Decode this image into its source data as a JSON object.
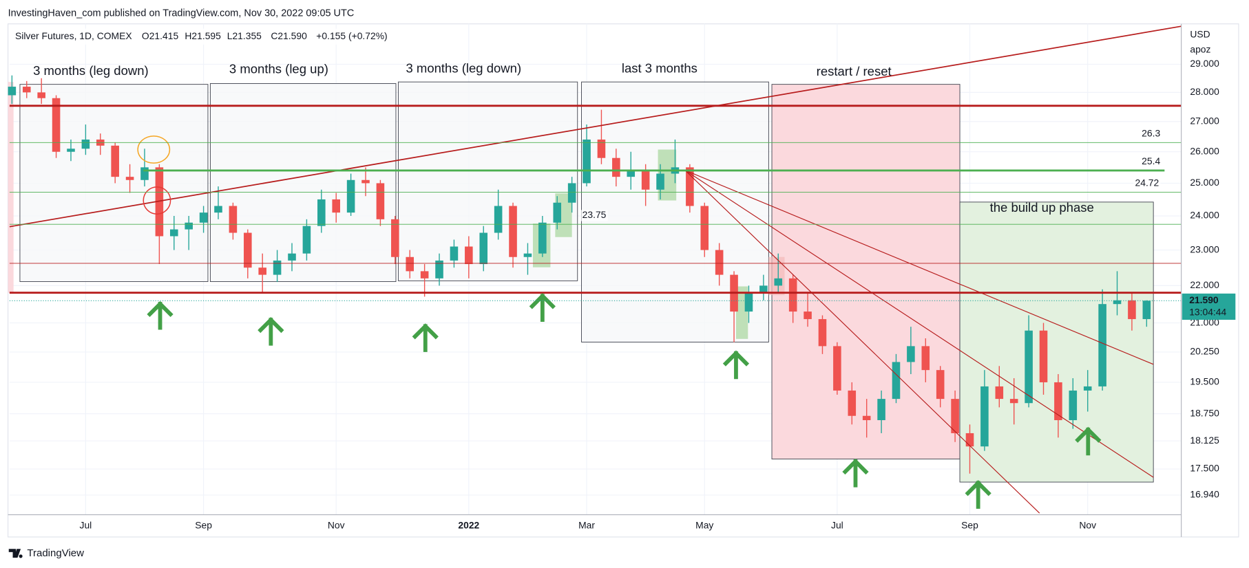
{
  "header": {
    "publisher": "InvestingHaven_com published on TradingView.com, Nov 30, 2022 09:05 UTC"
  },
  "footer": {
    "brand": "TradingView"
  },
  "chart_data": {
    "type": "candlestick",
    "title": "Silver Futures, 1D, COMEX",
    "legend_values": [
      "O21.415",
      "H21.595",
      "L21.355",
      "C21.590",
      "+0.155 (+0.72%)"
    ],
    "axis_unit": "USD",
    "axis_subunit": "apoz",
    "log_scale": true,
    "grid": true,
    "up_color": "#26a69a",
    "down_color": "#ef5350",
    "categories": [
      null,
      null,
      null,
      null,
      null,
      "Jul",
      null,
      null,
      null,
      null,
      null,
      null,
      null,
      "Sep",
      null,
      null,
      null,
      null,
      null,
      null,
      null,
      null,
      "Nov",
      null,
      null,
      null,
      null,
      null,
      null,
      null,
      null,
      "2022",
      null,
      null,
      null,
      null,
      null,
      null,
      null,
      "Mar",
      null,
      null,
      null,
      null,
      null,
      null,
      null,
      "May",
      null,
      null,
      null,
      null,
      null,
      null,
      null,
      null,
      "Jul",
      null,
      null,
      null,
      null,
      null,
      null,
      null,
      null,
      "Sep",
      null,
      null,
      null,
      null,
      null,
      null,
      null,
      "Nov",
      null,
      null,
      null,
      null
    ],
    "open": [
      27.9,
      28.2,
      28.0,
      27.8,
      26.0,
      26.1,
      26.4,
      26.2,
      25.2,
      25.1,
      25.5,
      23.4,
      23.6,
      23.8,
      24.1,
      24.3,
      23.5,
      22.5,
      22.3,
      22.7,
      22.9,
      23.7,
      24.5,
      24.1,
      25.1,
      25.0,
      23.9,
      22.8,
      22.4,
      22.2,
      22.7,
      23.1,
      22.6,
      23.5,
      24.3,
      22.8,
      22.9,
      23.8,
      24.4,
      25.0,
      26.4,
      25.8,
      25.2,
      25.4,
      24.8,
      25.3,
      25.5,
      24.3,
      23.0,
      22.3,
      21.3,
      21.8,
      22.0,
      22.2,
      21.3,
      21.1,
      20.4,
      19.3,
      18.7,
      18.6,
      19.1,
      20.0,
      20.4,
      19.8,
      19.1,
      18.3,
      18.0,
      19.4,
      19.1,
      19.0,
      20.8,
      19.5,
      18.6,
      19.3,
      19.4,
      21.5,
      21.6,
      21.1
    ],
    "high": [
      28.6,
      28.4,
      28.5,
      27.9,
      26.4,
      26.9,
      26.6,
      26.3,
      25.6,
      26.1,
      25.6,
      24.0,
      24.0,
      24.3,
      24.9,
      24.4,
      23.6,
      22.9,
      23.0,
      23.2,
      23.9,
      24.8,
      24.7,
      25.3,
      25.5,
      25.1,
      24.0,
      23.0,
      22.6,
      22.9,
      23.3,
      23.4,
      23.7,
      24.8,
      24.4,
      23.2,
      24.0,
      24.6,
      25.2,
      26.9,
      27.4,
      26.1,
      26.0,
      25.6,
      25.6,
      26.4,
      25.6,
      24.4,
      23.2,
      22.4,
      22.0,
      22.3,
      22.9,
      22.3,
      21.8,
      21.2,
      20.5,
      19.5,
      19.1,
      19.3,
      20.2,
      20.9,
      20.6,
      19.9,
      19.3,
      18.5,
      19.8,
      19.9,
      19.6,
      21.2,
      21.0,
      19.7,
      19.6,
      19.8,
      21.9,
      22.4,
      21.8,
      21.6
    ],
    "low": [
      27.6,
      27.8,
      27.6,
      25.8,
      25.7,
      25.9,
      25.9,
      25.0,
      24.7,
      24.9,
      22.6,
      23.0,
      23.0,
      23.5,
      23.9,
      23.3,
      22.2,
      21.8,
      22.1,
      22.4,
      22.7,
      23.5,
      23.8,
      24.0,
      24.6,
      23.7,
      22.6,
      22.2,
      21.7,
      22.0,
      22.5,
      22.2,
      22.4,
      23.3,
      22.5,
      22.3,
      22.8,
      23.6,
      24.1,
      24.9,
      25.6,
      24.9,
      24.8,
      24.3,
      24.5,
      25.0,
      24.1,
      22.8,
      22.0,
      20.5,
      21.0,
      21.6,
      21.8,
      21.0,
      20.9,
      20.2,
      19.2,
      18.5,
      18.2,
      18.3,
      19.0,
      19.7,
      19.5,
      18.9,
      18.1,
      17.4,
      17.9,
      18.9,
      18.5,
      18.9,
      19.2,
      18.2,
      18.4,
      18.8,
      19.3,
      21.2,
      20.8,
      20.9
    ],
    "close": [
      28.2,
      28.0,
      27.8,
      26.0,
      26.1,
      26.4,
      26.2,
      25.2,
      25.1,
      25.5,
      23.4,
      23.6,
      23.8,
      24.1,
      24.3,
      23.5,
      22.5,
      22.3,
      22.7,
      22.9,
      23.7,
      24.5,
      24.1,
      25.1,
      25.0,
      23.9,
      22.8,
      22.4,
      22.2,
      22.7,
      23.1,
      22.6,
      23.5,
      24.3,
      22.8,
      22.9,
      23.8,
      24.4,
      25.0,
      26.4,
      25.8,
      25.2,
      25.4,
      24.8,
      25.3,
      25.5,
      24.3,
      23.0,
      22.3,
      21.3,
      21.8,
      22.0,
      22.2,
      21.3,
      21.1,
      20.4,
      19.3,
      18.7,
      18.6,
      19.1,
      20.0,
      20.4,
      19.8,
      19.1,
      18.3,
      18.0,
      19.4,
      19.1,
      19.0,
      20.8,
      19.5,
      18.6,
      19.3,
      19.4,
      21.5,
      21.6,
      21.1,
      21.59
    ],
    "ylim": [
      16.53,
      30.5
    ],
    "yticks": [
      {
        "value": 29,
        "label": "29.000"
      },
      {
        "value": 28,
        "label": "28.000"
      },
      {
        "value": 27,
        "label": "27.000"
      },
      {
        "value": 26,
        "label": "26.000"
      },
      {
        "value": 25,
        "label": "25.000"
      },
      {
        "value": 24,
        "label": "24.000"
      },
      {
        "value": 23,
        "label": "23.000"
      },
      {
        "value": 22,
        "label": "22.000"
      },
      {
        "value": 21,
        "label": "21.000"
      },
      {
        "value": 20.25,
        "label": "20.250"
      },
      {
        "value": 19.5,
        "label": "19.500"
      },
      {
        "value": 18.75,
        "label": "18.750"
      },
      {
        "value": 18.125,
        "label": "18.125"
      },
      {
        "value": 17.5,
        "label": "17.500"
      },
      {
        "value": 16.94,
        "label": "16.940"
      }
    ],
    "last_price": {
      "value": 21.59,
      "label": "21.590"
    },
    "countdown": "13:04:44",
    "levels": [
      26.3,
      25.4,
      24.72,
      23.75
    ],
    "annotations": [
      "3 months (leg down)",
      "3 months (leg up)",
      "3 months (leg down)",
      "last 3 months",
      "restart / reset",
      "the build up phase"
    ]
  }
}
